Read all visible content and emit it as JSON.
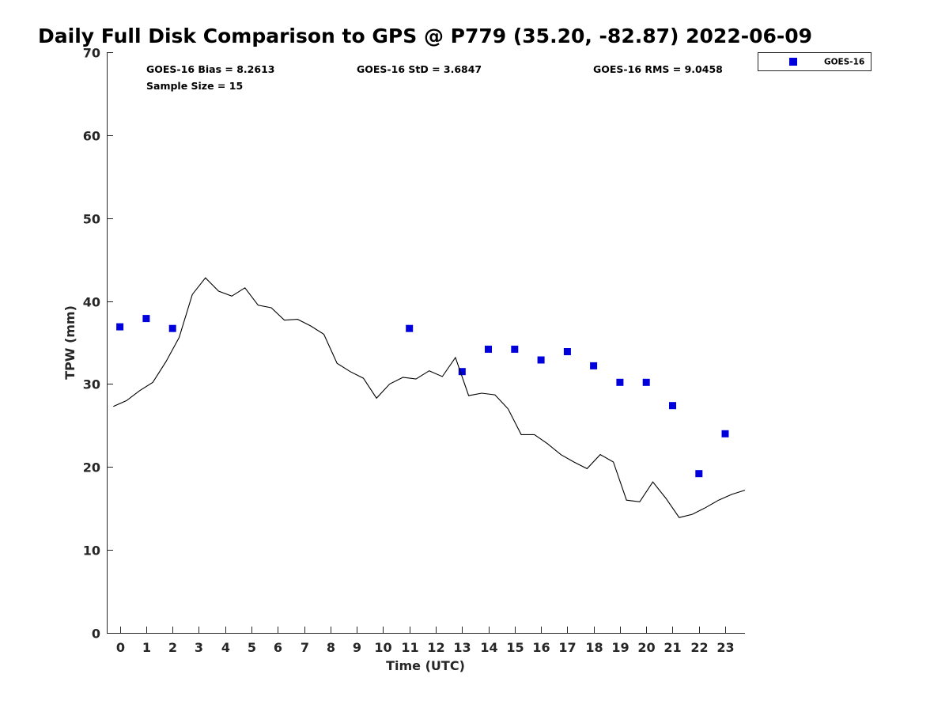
{
  "chart_data": {
    "type": "scatter",
    "title": "Daily Full Disk Comparison to GPS @ P779 (35.20, -82.87) 2022-06-09",
    "xlabel": "Time (UTC)",
    "ylabel": "TPW (mm)",
    "xlim": [
      -0.5,
      23.75
    ],
    "ylim": [
      0,
      70
    ],
    "x_ticks": [
      0,
      1,
      2,
      3,
      4,
      5,
      6,
      7,
      8,
      9,
      10,
      11,
      12,
      13,
      14,
      15,
      16,
      17,
      18,
      19,
      20,
      21,
      22,
      23
    ],
    "y_ticks": [
      0,
      10,
      20,
      30,
      40,
      50,
      60,
      70
    ],
    "grid": false,
    "legend_position": "top-right-outside",
    "stats": {
      "bias": "GOES-16 Bias = 8.2613",
      "std": "GOES-16 StD = 3.6847",
      "rms": "GOES-16 RMS = 9.0458",
      "sample": "Sample Size = 15"
    },
    "series": [
      {
        "name": "GOES-16",
        "kind": "scatter",
        "color": "#0000dd",
        "x": [
          0,
          1,
          2,
          11,
          13,
          14,
          15,
          16,
          17,
          18,
          19,
          20,
          21,
          22,
          23
        ],
        "y": [
          36.9,
          37.9,
          36.7,
          36.7,
          31.5,
          34.2,
          34.2,
          32.9,
          33.9,
          32.2,
          30.2,
          30.2,
          27.4,
          19.2,
          24.0
        ]
      },
      {
        "kind": "line",
        "color": "#000000",
        "x": [
          -0.25,
          0.25,
          0.75,
          1.25,
          1.75,
          2.25,
          2.75,
          3.25,
          3.75,
          4.25,
          4.75,
          5.25,
          5.75,
          6.25,
          6.75,
          7.25,
          7.75,
          8.25,
          8.75,
          9.25,
          9.75,
          10.25,
          10.75,
          11.25,
          11.75,
          12.25,
          12.75,
          13.25,
          13.75,
          14.25,
          14.75,
          15.25,
          15.75,
          16.25,
          16.75,
          17.25,
          17.75,
          18.25,
          18.75,
          19.25,
          19.75,
          20.25,
          20.75,
          21.25,
          21.75,
          22.25,
          22.75,
          23.25,
          23.75
        ],
        "y": [
          27.3,
          28.0,
          29.2,
          30.2,
          32.7,
          35.6,
          40.8,
          42.8,
          41.2,
          40.6,
          41.6,
          39.5,
          39.2,
          37.7,
          37.8,
          37.0,
          36.0,
          32.5,
          31.5,
          30.7,
          28.3,
          30.0,
          30.8,
          30.6,
          31.6,
          30.9,
          33.2,
          28.6,
          28.9,
          28.7,
          27.0,
          23.9,
          23.9,
          22.8,
          21.5,
          20.6,
          19.8,
          21.5,
          20.6,
          16.0,
          15.8,
          18.2,
          16.2,
          13.9,
          14.3,
          15.1,
          16.0,
          16.7,
          17.2
        ]
      }
    ]
  }
}
